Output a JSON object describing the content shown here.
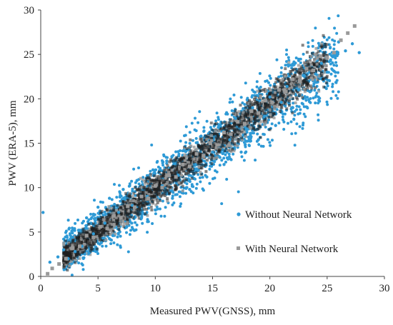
{
  "chart_data": {
    "type": "scatter",
    "title": "",
    "xlabel": "Measured PWV(GNSS), mm",
    "ylabel": "PWV (ERA-5), mm",
    "xlim": [
      0,
      30
    ],
    "ylim": [
      0,
      30
    ],
    "xticks": [
      "0",
      "5",
      "10",
      "15",
      "20",
      "25",
      "30"
    ],
    "yticks": [
      "0",
      "5",
      "10",
      "15",
      "20",
      "25",
      "30"
    ],
    "grid": false,
    "legend_position": "bottom-right",
    "series": [
      {
        "name": "Without Neural Network",
        "marker": "circle",
        "color": "#2e9ad6",
        "approx_relation": "y ≈ 0.93x + 0.6 with wide scatter (±~2.5 mm)",
        "points": [
          [
            0.2,
            7.2
          ],
          [
            0.8,
            1.6
          ],
          [
            1.5,
            2.2
          ],
          [
            2.0,
            3.0
          ],
          [
            2.4,
            2.0
          ],
          [
            2.8,
            4.4
          ],
          [
            3.0,
            2.8
          ],
          [
            3.3,
            5.2
          ],
          [
            3.6,
            3.4
          ],
          [
            4.0,
            6.6
          ],
          [
            4.2,
            2.6
          ],
          [
            4.6,
            4.8
          ],
          [
            5.0,
            7.8
          ],
          [
            5.3,
            3.8
          ],
          [
            5.6,
            6.0
          ],
          [
            6.0,
            8.8
          ],
          [
            6.3,
            4.6
          ],
          [
            6.8,
            7.2
          ],
          [
            7.2,
            9.8
          ],
          [
            7.5,
            5.6
          ],
          [
            8.0,
            8.0
          ],
          [
            8.4,
            10.8
          ],
          [
            8.8,
            6.6
          ],
          [
            9.3,
            9.0
          ],
          [
            9.8,
            12.0
          ],
          [
            10.2,
            7.6
          ],
          [
            10.6,
            10.2
          ],
          [
            11.0,
            13.0
          ],
          [
            11.5,
            8.8
          ],
          [
            12.0,
            11.4
          ],
          [
            12.5,
            14.2
          ],
          [
            13.0,
            9.8
          ],
          [
            13.5,
            12.6
          ],
          [
            14.0,
            15.8
          ],
          [
            14.5,
            11.2
          ],
          [
            15.0,
            14.0
          ],
          [
            15.5,
            16.8
          ],
          [
            16.0,
            12.6
          ],
          [
            16.5,
            15.4
          ],
          [
            17.0,
            17.8
          ],
          [
            17.5,
            14.0
          ],
          [
            18.0,
            16.6
          ],
          [
            18.5,
            19.0
          ],
          [
            19.0,
            15.4
          ],
          [
            19.5,
            18.0
          ],
          [
            20.0,
            20.2
          ],
          [
            20.5,
            17.0
          ],
          [
            21.0,
            19.6
          ],
          [
            21.5,
            21.4
          ],
          [
            22.0,
            19.0
          ],
          [
            22.5,
            21.0
          ],
          [
            23.0,
            22.6
          ],
          [
            23.5,
            20.8
          ],
          [
            24.0,
            22.8
          ],
          [
            24.5,
            24.0
          ],
          [
            25.0,
            23.0
          ],
          [
            26.0,
            26.4
          ],
          [
            26.6,
            25.4
          ],
          [
            27.2,
            26.2
          ],
          [
            27.8,
            25.2
          ]
        ]
      },
      {
        "name": "With Neural Network",
        "marker": "square",
        "color": "#9a9a9a",
        "approx_relation": "y ≈ 0.97x + 0.2 with tight scatter (±~1.3 mm)",
        "points": [
          [
            0.6,
            0.3
          ],
          [
            1.0,
            0.9
          ],
          [
            1.6,
            1.4
          ],
          [
            2.2,
            2.0
          ],
          [
            2.8,
            3.2
          ],
          [
            3.4,
            3.4
          ],
          [
            4.0,
            4.6
          ],
          [
            4.6,
            4.4
          ],
          [
            5.2,
            5.6
          ],
          [
            5.8,
            5.4
          ],
          [
            6.4,
            6.8
          ],
          [
            7.0,
            6.6
          ],
          [
            7.6,
            7.9
          ],
          [
            8.2,
            7.8
          ],
          [
            8.8,
            9.0
          ],
          [
            9.4,
            8.8
          ],
          [
            10.0,
            10.2
          ],
          [
            10.6,
            10.0
          ],
          [
            11.2,
            11.4
          ],
          [
            11.8,
            11.2
          ],
          [
            12.4,
            12.6
          ],
          [
            13.0,
            12.4
          ],
          [
            13.6,
            13.8
          ],
          [
            14.2,
            13.6
          ],
          [
            14.8,
            15.0
          ],
          [
            15.4,
            14.8
          ],
          [
            16.0,
            16.2
          ],
          [
            16.6,
            16.0
          ],
          [
            17.2,
            17.4
          ],
          [
            17.8,
            17.2
          ],
          [
            18.4,
            18.6
          ],
          [
            19.0,
            18.4
          ],
          [
            19.6,
            19.8
          ],
          [
            20.2,
            19.6
          ],
          [
            20.8,
            21.0
          ],
          [
            21.4,
            20.8
          ],
          [
            22.0,
            22.2
          ],
          [
            22.6,
            22.0
          ],
          [
            23.2,
            23.4
          ],
          [
            23.8,
            23.2
          ],
          [
            24.4,
            24.8
          ],
          [
            25.0,
            24.6
          ],
          [
            25.6,
            25.2
          ],
          [
            26.2,
            26.6
          ],
          [
            26.8,
            27.4
          ],
          [
            27.4,
            28.2
          ]
        ]
      }
    ]
  }
}
